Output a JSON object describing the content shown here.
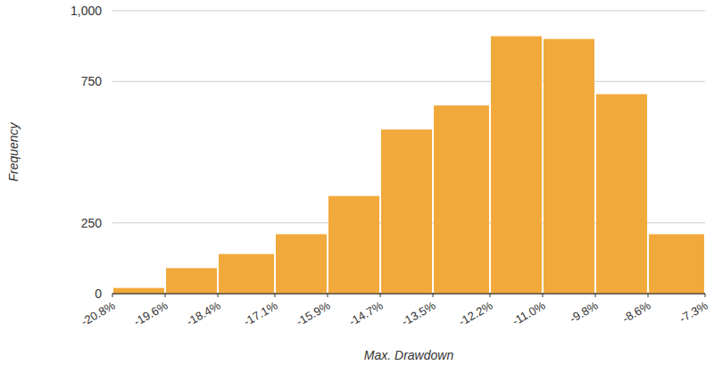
{
  "chart_data": {
    "type": "histogram",
    "x_label": "Max. Drawdown",
    "y_label": "Frequency",
    "bins": [
      -20.8,
      -19.6,
      -18.4,
      -17.1,
      -15.9,
      -14.7,
      -13.5,
      -12.2,
      -11.0,
      -9.8,
      -8.6,
      -7.3
    ],
    "values": [
      20,
      90,
      140,
      210,
      345,
      580,
      665,
      910,
      900,
      705,
      210
    ],
    "color": "#f2a93b",
    "xlim": [
      -20.8,
      -7.3
    ],
    "xticks": [
      {
        "value": -20.8,
        "label": "-20.8%"
      },
      {
        "value": -19.6,
        "label": "-19.6%"
      },
      {
        "value": -18.4,
        "label": "-18.4%"
      },
      {
        "value": -17.1,
        "label": "-17.1%"
      },
      {
        "value": -15.9,
        "label": "-15.9%"
      },
      {
        "value": -14.7,
        "label": "-14.7%"
      },
      {
        "value": -13.5,
        "label": "-13.5%"
      },
      {
        "value": -12.2,
        "label": "-12.2%"
      },
      {
        "value": -11.0,
        "label": "-11.0%"
      },
      {
        "value": -9.8,
        "label": "-9.8%"
      },
      {
        "value": -8.6,
        "label": "-8.6%"
      },
      {
        "value": -7.3,
        "label": "-7.3%"
      }
    ],
    "ylim": [
      0,
      1000
    ],
    "yticks": [
      0,
      250,
      750,
      {
        "value": 1000,
        "label": "1,000"
      }
    ],
    "grid": true
  }
}
